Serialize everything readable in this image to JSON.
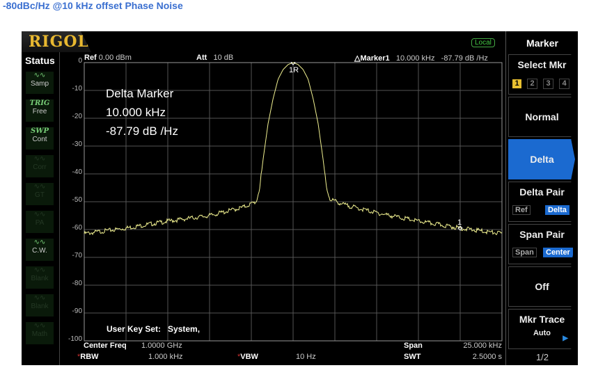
{
  "page_title": "-80dBc/Hz @10 kHz offset Phase Noise",
  "brand": "RIGOL",
  "status": {
    "title": "Status",
    "items": [
      {
        "tag": "",
        "label": "Samp",
        "icon": "sweep-wave-icon",
        "active": true
      },
      {
        "tag": "TRIG",
        "label": "Free",
        "icon": "trig-icon",
        "active": true
      },
      {
        "tag": "SWP",
        "label": "Cont",
        "icon": "swp-icon",
        "active": true
      },
      {
        "tag": "",
        "label": "Corr",
        "icon": "corr-icon",
        "active": false
      },
      {
        "tag": "",
        "label": "GT",
        "icon": "tracking-generator-icon",
        "active": false
      },
      {
        "tag": "",
        "label": "PA",
        "icon": "preamp-icon",
        "active": false
      },
      {
        "tag": "",
        "label": "C.W.",
        "icon": "trace-icon",
        "active": true
      },
      {
        "tag": "",
        "label": "Blank",
        "icon": "trace-icon",
        "active": false
      },
      {
        "tag": "",
        "label": "Blank",
        "icon": "trace-icon",
        "active": false
      },
      {
        "tag": "",
        "label": "Math",
        "icon": "trace-icon",
        "active": false
      }
    ]
  },
  "header": {
    "local_badge": "Local",
    "ref_label": "Ref",
    "ref_value": "0.00 dBm",
    "att_label": "Att",
    "att_value": "10 dB",
    "marker_label": "△Marker1",
    "marker_freq": "10.000 kHz",
    "marker_value": "-87.79 dB /Hz"
  },
  "overlay": {
    "line1": "Delta Marker",
    "line2": "10.000 kHz",
    "line3": "-87.79 dB /Hz",
    "user_key": "User Key Set:   System,",
    "marker_ref_label": "1R",
    "marker_delta_label": "1"
  },
  "footer": {
    "center_label": "Center Freq",
    "center_value": "1.0000 GHz",
    "span_label": "Span",
    "span_value": "25.000 kHz",
    "rbw_label": "RBW",
    "rbw_value": "1.000 kHz",
    "vbw_label": "VBW",
    "vbw_value": "10 Hz",
    "swt_label": "SWT",
    "swt_value": "2.5000 s"
  },
  "menu": {
    "title": "Marker",
    "select_mkr": "Select Mkr",
    "markers": [
      "1",
      "2",
      "3",
      "4"
    ],
    "selected_marker": "1",
    "normal": "Normal",
    "delta": "Delta",
    "delta_pair": "Delta Pair",
    "delta_pair_opts": [
      "Ref",
      "Delta"
    ],
    "delta_pair_selected": "Delta",
    "span_pair": "Span Pair",
    "span_pair_opts": [
      "Span",
      "Center"
    ],
    "span_pair_selected": "Center",
    "off": "Off",
    "mkr_trace": "Mkr Trace",
    "mkr_trace_value": "Auto",
    "page": "1/2"
  },
  "colors": {
    "trace": "#f0f090",
    "accent": "#1b6ad0",
    "title": "#3a6fd0",
    "marker_select": "#e8c030"
  },
  "chart_data": {
    "type": "line",
    "ylim": [
      -100,
      0
    ],
    "yticks": [
      "0",
      "-10",
      "-20",
      "-30",
      "-40",
      "-50",
      "-60",
      "-70",
      "-80",
      "-90",
      "-100"
    ],
    "xlim_offset_khz": [
      -12.5,
      12.5
    ],
    "grid": true,
    "series": [
      {
        "x": [
          -12.5,
          -10,
          -7.5,
          -5,
          -3,
          -2.2,
          -2.0,
          -1.8,
          -1.5,
          -1.2,
          -0.9,
          -0.6,
          -0.3,
          0,
          0.3,
          0.6,
          0.9,
          1.2,
          1.5,
          1.8,
          2.0,
          2.2,
          3,
          5,
          7.5,
          10,
          12.5
        ],
        "y": [
          -61.5,
          -59.5,
          -57,
          -55,
          -52,
          -50,
          -45,
          -35,
          -22,
          -13,
          -6,
          -2.5,
          -0.7,
          0,
          -0.7,
          -2.5,
          -6,
          -13,
          -22,
          -35,
          -45,
          -49,
          -51,
          -54,
          -57,
          -59.5,
          -61.5
        ]
      }
    ],
    "markers": [
      {
        "label": "1R",
        "x": 0,
        "y": 0
      },
      {
        "label": "1",
        "x": 10,
        "y": -59.5
      }
    ]
  }
}
